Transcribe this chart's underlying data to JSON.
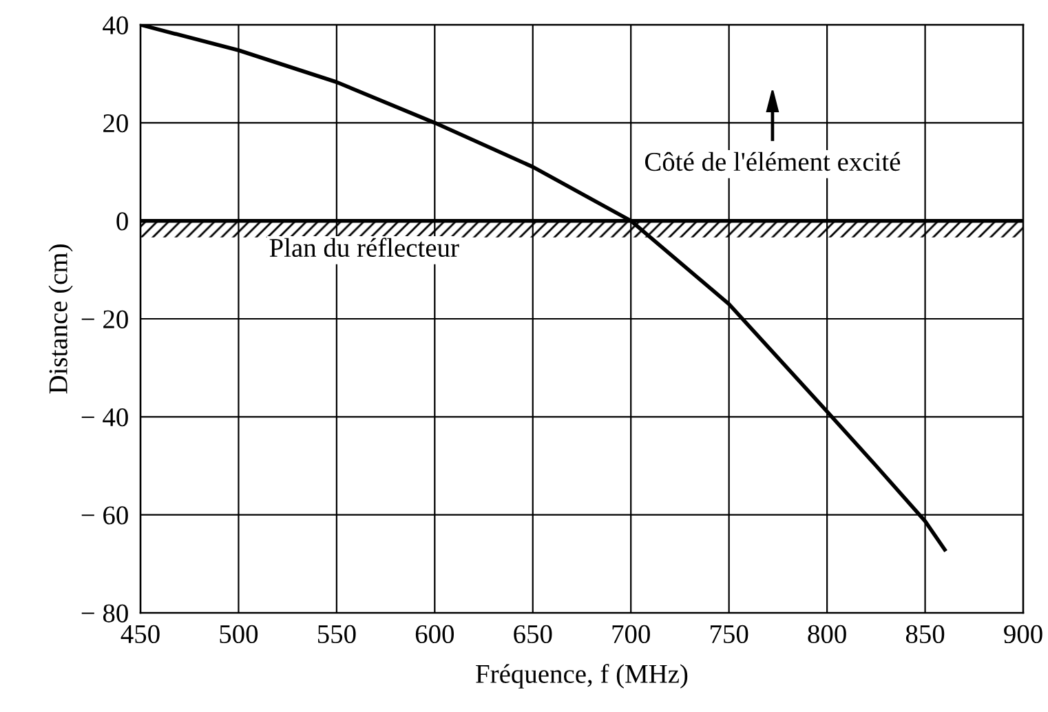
{
  "chart_data": {
    "type": "line",
    "xlabel": "Fréquence, f (MHz)",
    "ylabel": "Distance (cm)",
    "x": [
      450,
      500,
      550,
      600,
      650,
      700,
      750,
      800,
      825,
      850,
      860
    ],
    "series": [
      {
        "color": "#000000",
        "values": [
          40,
          34.8,
          28.3,
          20,
          11,
          0,
          -17,
          -38.9,
          -50,
          -61.3,
          -67.1
        ]
      }
    ],
    "xlim": [
      450,
      900
    ],
    "xticks": [
      450,
      500,
      550,
      600,
      650,
      700,
      750,
      800,
      850,
      900
    ],
    "ylim": [
      -80,
      40
    ],
    "yticks": [
      {
        "value": -80,
        "label": "− 80"
      },
      {
        "value": -60,
        "label": "− 60"
      },
      {
        "value": -40,
        "label": "− 40"
      },
      {
        "value": -20,
        "label": "− 20"
      },
      0,
      20,
      40
    ],
    "grid": true,
    "line_style": "solid",
    "marker": "none",
    "ref_lines": [
      {
        "axis": "y",
        "value": 0,
        "label": "Plan du réflecteur",
        "color": "#000000",
        "line_style": "solid"
      }
    ],
    "bands": [
      {
        "axis": "y",
        "from": -3.4,
        "to": 0,
        "color": "#000000"
      }
    ],
    "annotations": [
      "Côté de l'élément excité"
    ]
  }
}
